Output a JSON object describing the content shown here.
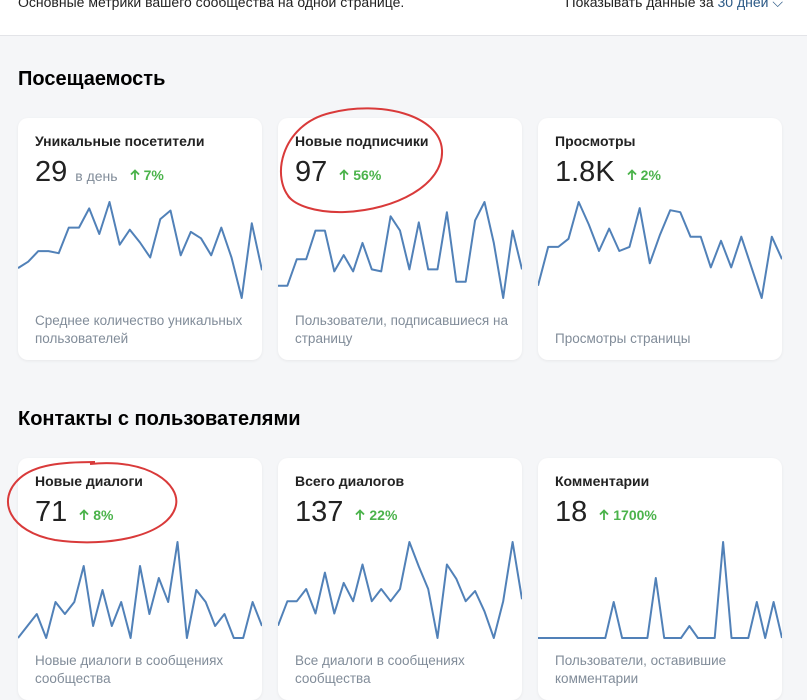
{
  "header": {
    "subtitle": "Основные метрики вашего сообщества на одной странице.",
    "period_label": "Показывать данные за",
    "period_value": "30 дней"
  },
  "sections": [
    {
      "title": "Посещаемость",
      "cards": [
        {
          "title": "Уникальные посетители",
          "value": "29",
          "unit": "в день",
          "change": "7%",
          "description": "Среднее количество уникальных пользователей",
          "sparkline": [
            32,
            38,
            48,
            48,
            46,
            70,
            70,
            88,
            64,
            94,
            54,
            68,
            56,
            42,
            78,
            86,
            44,
            66,
            60,
            44,
            70,
            42,
            4,
            74,
            30
          ]
        },
        {
          "title": "Новые подписчики",
          "value": "97",
          "change": "56%",
          "description": "Пользователи, подписавшиеся на страницу",
          "sparkline": [
            14,
            14,
            40,
            40,
            68,
            68,
            28,
            44,
            28,
            56,
            30,
            28,
            82,
            68,
            30,
            76,
            30,
            30,
            86,
            18,
            18,
            78,
            96,
            56,
            2,
            68,
            30
          ]
        },
        {
          "title": "Просмотры",
          "value": "1.8K",
          "change": "2%",
          "description": "Просмотры страницы",
          "sparkline": [
            14,
            52,
            52,
            60,
            96,
            74,
            48,
            70,
            48,
            52,
            90,
            36,
            64,
            88,
            86,
            62,
            62,
            32,
            58,
            32,
            62,
            32,
            2,
            62,
            40
          ]
        }
      ]
    },
    {
      "title": "Контакты с пользователями",
      "cards": [
        {
          "title": "Новые диалоги",
          "value": "71",
          "change": "8%",
          "description": "Новые диалоги в сообщениях сообщества",
          "sparkline": [
            0,
            1,
            2,
            0,
            3,
            2,
            3,
            6,
            1,
            4,
            1,
            3,
            0,
            6,
            2,
            5,
            3,
            8,
            0,
            4,
            3,
            1,
            2,
            0,
            0,
            3,
            1
          ]
        },
        {
          "title": "Всего диалогов",
          "value": "137",
          "change": "22%",
          "description": "Все диалоги в сообщениях сообщества",
          "sparkline": [
            52,
            76,
            76,
            88,
            64,
            104,
            64,
            94,
            76,
            112,
            76,
            88,
            76,
            88,
            134,
            110,
            88,
            40,
            112,
            98,
            76,
            86,
            66,
            40,
            76,
            134,
            78
          ]
        },
        {
          "title": "Комментарии",
          "value": "18",
          "change": "1700%",
          "description": "Пользователи, оставившие комментарии",
          "sparkline": [
            0,
            0,
            0,
            0,
            0,
            0,
            0,
            0,
            0,
            3,
            0,
            0,
            0,
            0,
            5,
            0,
            0,
            0,
            1,
            0,
            0,
            0,
            8,
            0,
            0,
            0,
            3,
            0,
            3,
            0
          ]
        }
      ]
    }
  ]
}
